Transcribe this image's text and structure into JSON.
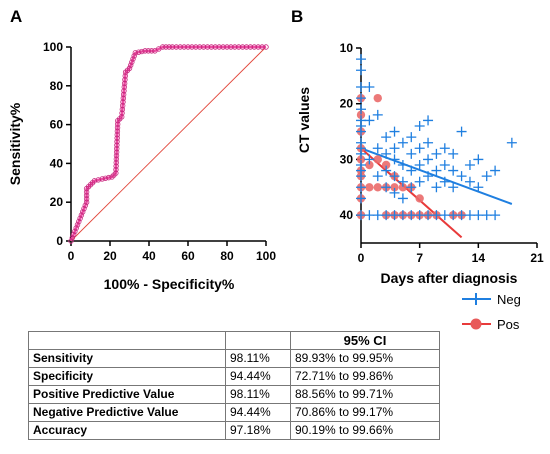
{
  "panels": {
    "a": "A",
    "b": "B"
  },
  "colors": {
    "roc": "#ee4fa4",
    "neg": "#1f7fe0",
    "pos": "#e83a3a",
    "diagonal": "#e2473b"
  },
  "chart_data": [
    {
      "type": "line",
      "panel": "A",
      "xlabel": "100% - Specificity%",
      "ylabel": "Sensitivity%",
      "xlim": [
        0,
        100
      ],
      "ylim": [
        0,
        100
      ],
      "xticks": [
        "0",
        "20",
        "40",
        "60",
        "80",
        "100"
      ],
      "yticks": [
        "0",
        "20",
        "40",
        "60",
        "80",
        "100"
      ],
      "series": [
        {
          "x": [
            0,
            8,
            8,
            10,
            12,
            16,
            21,
            23,
            24,
            26,
            28,
            30,
            33,
            38,
            43,
            47,
            52,
            60,
            70,
            80,
            90,
            100
          ],
          "y": [
            0,
            20,
            27,
            29,
            31,
            32,
            33,
            35,
            62,
            64,
            87,
            89,
            97,
            98,
            98,
            100,
            100,
            100,
            100,
            100,
            100,
            100
          ],
          "style": "step-markers"
        },
        {
          "x": [
            0,
            100
          ],
          "y": [
            0,
            100
          ],
          "style": "reference-diagonal"
        }
      ]
    },
    {
      "type": "scatter",
      "panel": "B",
      "xlabel": "Days after diagnosis",
      "ylabel": "CT values",
      "xlim": [
        0,
        21
      ],
      "ylim": [
        10,
        45
      ],
      "y_inverted": true,
      "xticks": [
        "0",
        "7",
        "14",
        "21"
      ],
      "yticks": [
        "10",
        "20",
        "30",
        "40"
      ],
      "legend_position": "bottom-right",
      "series": [
        {
          "name": "Neg",
          "marker": "plus",
          "x": [
            0,
            0,
            0,
            0,
            0,
            0,
            0,
            0,
            0,
            0,
            0,
            0,
            0,
            0,
            0,
            0,
            0,
            1,
            1,
            1,
            2,
            2,
            2,
            3,
            3,
            3,
            3,
            4,
            4,
            4,
            4,
            4,
            5,
            5,
            5,
            5,
            6,
            6,
            6,
            6,
            7,
            7,
            7,
            7,
            8,
            8,
            8,
            8,
            9,
            9,
            9,
            10,
            10,
            10,
            11,
            11,
            11,
            12,
            12,
            13,
            13,
            14,
            14,
            15,
            16,
            18,
            1,
            2,
            3,
            4,
            5,
            6,
            7,
            8,
            9,
            10,
            11,
            12,
            13,
            14,
            15,
            16
          ],
          "y": [
            12,
            14,
            17,
            19,
            21,
            23,
            25,
            27,
            29,
            31,
            33,
            35,
            37,
            40,
            24,
            28,
            32,
            17,
            23,
            30,
            22,
            28,
            33,
            26,
            29,
            32,
            35,
            25,
            28,
            30,
            33,
            36,
            27,
            31,
            34,
            37,
            26,
            29,
            32,
            35,
            24,
            28,
            31,
            34,
            23,
            27,
            30,
            33,
            29,
            32,
            35,
            28,
            31,
            34,
            29,
            32,
            35,
            25,
            33,
            31,
            34,
            30,
            35,
            33,
            32,
            27,
            40,
            40,
            40,
            40,
            40,
            40,
            40,
            40,
            40,
            40,
            40,
            40,
            40,
            40,
            40,
            40
          ]
        },
        {
          "name": "Pos",
          "marker": "circle",
          "x": [
            0,
            0,
            0,
            0,
            0,
            0,
            0,
            0,
            0,
            0,
            1,
            1,
            2,
            2,
            2,
            3,
            3,
            3,
            4,
            4,
            4,
            5,
            5,
            6,
            6,
            7,
            7,
            8,
            9,
            11,
            12
          ],
          "y": [
            19,
            22,
            25,
            28,
            30,
            33,
            35,
            37,
            40,
            32,
            31,
            35,
            19,
            30,
            35,
            35,
            40,
            31,
            35,
            40,
            33,
            40,
            35,
            40,
            35,
            40,
            37,
            40,
            40,
            40,
            40
          ]
        }
      ],
      "fit_lines": [
        {
          "name": "Neg",
          "x": [
            0,
            18
          ],
          "y": [
            28,
            38
          ]
        },
        {
          "name": "Pos",
          "x": [
            0,
            12
          ],
          "y": [
            28,
            44
          ]
        }
      ]
    }
  ],
  "table": {
    "header": [
      "",
      "",
      "95% CI"
    ],
    "rows": [
      [
        "Sensitivity",
        "98.11%",
        "89.93% to 99.95%"
      ],
      [
        "Specificity",
        "94.44%",
        "72.71% to 99.86%"
      ],
      [
        "Positive Predictive Value",
        "98.11%",
        "88.56% to 99.71%"
      ],
      [
        "Negative Predictive Value",
        "94.44%",
        "70.86% to 99.17%"
      ],
      [
        "Accuracy",
        "97.18%",
        "90.19% to 99.66%"
      ]
    ]
  }
}
